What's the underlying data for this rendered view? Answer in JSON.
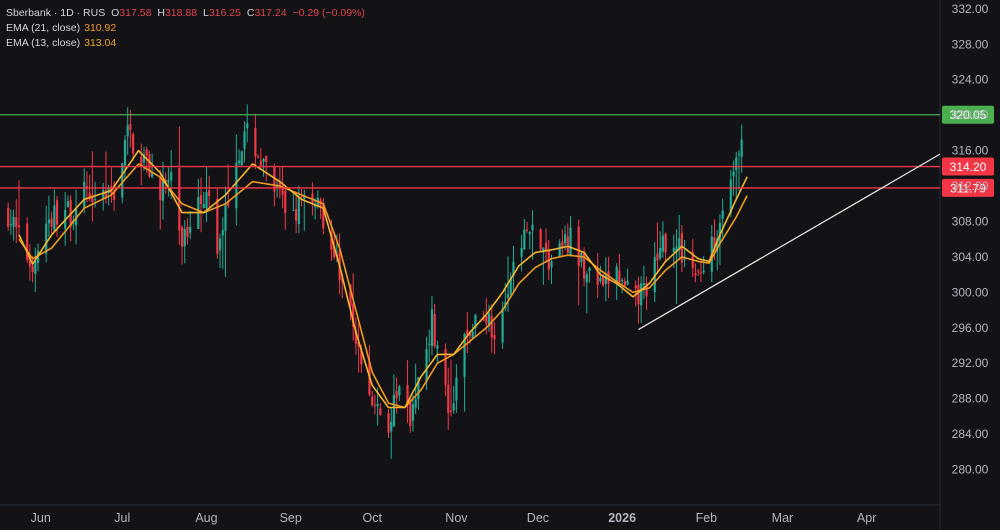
{
  "header": {
    "symbol": "Sberbank · 1D · RUS",
    "o_label": "O",
    "o_value": "317.58",
    "h_label": "H",
    "h_value": "318.88",
    "l_label": "L",
    "l_value": "316.25",
    "c_label": "C",
    "c_value": "317.24",
    "change": "−0.29 (−0.09%)"
  },
  "indicators": [
    {
      "label": "EMA (21, close)",
      "value": "310.92",
      "color": "#f39a2b"
    },
    {
      "label": "EMA (13, close)",
      "value": "313.04",
      "color": "#f5a623"
    }
  ],
  "colors": {
    "up": "#22ab94",
    "down": "#f23645",
    "ema21": "#f09a22",
    "ema13": "#f4b630",
    "resistance_green": "#4caf50",
    "resistance_red": "#f23645",
    "trendline": "#e8e8e8",
    "axis_text": "#b2b5be",
    "background": "#131317"
  },
  "chart_data": {
    "type": "candlestick",
    "ylim": [
      276,
      333
    ],
    "y_ticks": [
      "280.00",
      "284.00",
      "288.00",
      "292.00",
      "296.00",
      "300.00",
      "304.00",
      "308.00",
      "312.00",
      "316.00",
      "320.00",
      "324.00",
      "328.00",
      "332.00"
    ],
    "x_ticks": [
      {
        "label": "Jun",
        "day": 12
      },
      {
        "label": "Jul",
        "day": 42
      },
      {
        "label": "Aug",
        "day": 73
      },
      {
        "label": "Sep",
        "day": 104
      },
      {
        "label": "Oct",
        "day": 134
      },
      {
        "label": "Nov",
        "day": 165
      },
      {
        "label": "Dec",
        "day": 195
      },
      {
        "label": "2026",
        "day": 226,
        "bold": true
      },
      {
        "label": "Feb",
        "day": 257
      },
      {
        "label": "Mar",
        "day": 285
      },
      {
        "label": "Apr",
        "day": 316
      }
    ],
    "x_range": [
      -3,
      343
    ],
    "price_lines": [
      {
        "value": 320.05,
        "label": "320.05",
        "color": "green"
      },
      {
        "value": 314.2,
        "label": "314.20",
        "color": "red"
      },
      {
        "value": 311.79,
        "label": "311.79",
        "color": "red"
      }
    ],
    "trendline": {
      "from": {
        "day": 232,
        "price": 295.8
      },
      "to": {
        "day": 343,
        "price": 315.6
      }
    },
    "close_anchors": [
      [
        0,
        309
      ],
      [
        4,
        306
      ],
      [
        9,
        303
      ],
      [
        13,
        307
      ],
      [
        18,
        309
      ],
      [
        24,
        309
      ],
      [
        30,
        312
      ],
      [
        36,
        310
      ],
      [
        40,
        312
      ],
      [
        44,
        318
      ],
      [
        48,
        316
      ],
      [
        52,
        314
      ],
      [
        55,
        312
      ],
      [
        60,
        312
      ],
      [
        64,
        306
      ],
      [
        66,
        307
      ],
      [
        70,
        312
      ],
      [
        74,
        310
      ],
      [
        77,
        304
      ],
      [
        80,
        309
      ],
      [
        84,
        316
      ],
      [
        89,
        318
      ],
      [
        94,
        314
      ],
      [
        99,
        311
      ],
      [
        103,
        309
      ],
      [
        108,
        310
      ],
      [
        114,
        311
      ],
      [
        118,
        306
      ],
      [
        124,
        300
      ],
      [
        128,
        294
      ],
      [
        132,
        289
      ],
      [
        136,
        286
      ],
      [
        140,
        285
      ],
      [
        144,
        289
      ],
      [
        148,
        286
      ],
      [
        152,
        292
      ],
      [
        156,
        297
      ],
      [
        160,
        290
      ],
      [
        163,
        285
      ],
      [
        167,
        294
      ],
      [
        171,
        296
      ],
      [
        175,
        298
      ],
      [
        179,
        296
      ],
      [
        183,
        300
      ],
      [
        187,
        304
      ],
      [
        191,
        307
      ],
      [
        195,
        306
      ],
      [
        199,
        303
      ],
      [
        203,
        305
      ],
      [
        207,
        306
      ],
      [
        211,
        303
      ],
      [
        215,
        302
      ],
      [
        219,
        300
      ],
      [
        223,
        303
      ],
      [
        227,
        300
      ],
      [
        231,
        299
      ],
      [
        235,
        301
      ],
      [
        239,
        303
      ],
      [
        243,
        307
      ],
      [
        247,
        305
      ],
      [
        251,
        303
      ],
      [
        255,
        302
      ],
      [
        259,
        305
      ],
      [
        263,
        310
      ],
      [
        267,
        314
      ],
      [
        270,
        316
      ],
      [
        272,
        317.24
      ]
    ],
    "ema21_anchors": [
      [
        4,
        306
      ],
      [
        9,
        303.8
      ],
      [
        16,
        305
      ],
      [
        28,
        309.5
      ],
      [
        38,
        311
      ],
      [
        48,
        314.5
      ],
      [
        56,
        313
      ],
      [
        64,
        310
      ],
      [
        72,
        309
      ],
      [
        80,
        310
      ],
      [
        90,
        312.5
      ],
      [
        100,
        312
      ],
      [
        108,
        311
      ],
      [
        116,
        310
      ],
      [
        122,
        305
      ],
      [
        128,
        298
      ],
      [
        134,
        291
      ],
      [
        140,
        287.5
      ],
      [
        146,
        287
      ],
      [
        152,
        289
      ],
      [
        158,
        292
      ],
      [
        164,
        293
      ],
      [
        170,
        294.5
      ],
      [
        176,
        296
      ],
      [
        182,
        298
      ],
      [
        188,
        301
      ],
      [
        194,
        302.8
      ],
      [
        200,
        303.8
      ],
      [
        206,
        304.2
      ],
      [
        212,
        304
      ],
      [
        218,
        302.5
      ],
      [
        224,
        301.2
      ],
      [
        230,
        300
      ],
      [
        236,
        300.5
      ],
      [
        242,
        302.5
      ],
      [
        248,
        304
      ],
      [
        254,
        303.5
      ],
      [
        258,
        303.3
      ],
      [
        262,
        305.5
      ],
      [
        268,
        308.5
      ],
      [
        272,
        310.92
      ]
    ],
    "ema13_anchors": [
      [
        4,
        306.5
      ],
      [
        9,
        303.2
      ],
      [
        16,
        306.5
      ],
      [
        28,
        310.5
      ],
      [
        38,
        311.5
      ],
      [
        48,
        316
      ],
      [
        56,
        313.5
      ],
      [
        64,
        309
      ],
      [
        72,
        309
      ],
      [
        80,
        311
      ],
      [
        90,
        314.5
      ],
      [
        100,
        312.5
      ],
      [
        108,
        310.5
      ],
      [
        116,
        309.5
      ],
      [
        122,
        303
      ],
      [
        128,
        295.5
      ],
      [
        134,
        289.5
      ],
      [
        140,
        287
      ],
      [
        146,
        287
      ],
      [
        152,
        290.5
      ],
      [
        158,
        293
      ],
      [
        164,
        293
      ],
      [
        170,
        295.5
      ],
      [
        176,
        297.5
      ],
      [
        182,
        300
      ],
      [
        188,
        303
      ],
      [
        194,
        304.5
      ],
      [
        200,
        304.8
      ],
      [
        206,
        305.2
      ],
      [
        212,
        304.5
      ],
      [
        218,
        302
      ],
      [
        224,
        301
      ],
      [
        230,
        299.5
      ],
      [
        236,
        301
      ],
      [
        242,
        303.5
      ],
      [
        248,
        305.2
      ],
      [
        254,
        303.8
      ],
      [
        258,
        303.5
      ],
      [
        262,
        306.5
      ],
      [
        268,
        310.5
      ],
      [
        272,
        313.04
      ]
    ]
  }
}
